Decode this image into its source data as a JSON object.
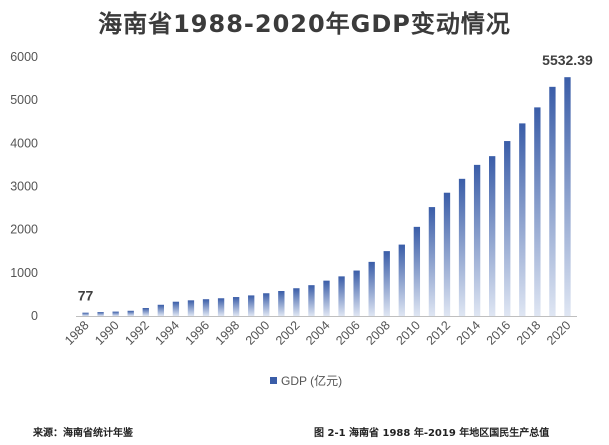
{
  "title": "海南省1988-2020年GDP变动情况",
  "legend_label": "GDP (亿元)",
  "source_text": "来源：海南省统计年鉴",
  "caption_text": "图 2-1    海南省 1988 年-2019 年地区国民生产总值",
  "colors": {
    "bar": "#3a5da8",
    "bar_light": "#dfe6f3",
    "axis": "#bfbfbf"
  },
  "chart_data": {
    "type": "bar",
    "title": "海南省1988-2020年GDP变动情况",
    "xlabel": "",
    "ylabel": "",
    "ylim": [
      0,
      6000
    ],
    "yticks": [
      0,
      1000,
      2000,
      3000,
      4000,
      5000,
      6000
    ],
    "xtick_labels": [
      "1988",
      "1990",
      "1992",
      "1994",
      "1996",
      "1998",
      "2000",
      "2002",
      "2004",
      "2006",
      "2008",
      "2010",
      "2012",
      "2014",
      "2016",
      "2018",
      "2020"
    ],
    "categories": [
      "1988",
      "1989",
      "1990",
      "1991",
      "1992",
      "1993",
      "1994",
      "1995",
      "1996",
      "1997",
      "1998",
      "1999",
      "2000",
      "2001",
      "2002",
      "2003",
      "2004",
      "2005",
      "2006",
      "2007",
      "2008",
      "2009",
      "2010",
      "2011",
      "2012",
      "2013",
      "2014",
      "2015",
      "2016",
      "2017",
      "2018",
      "2019",
      "2020"
    ],
    "series": [
      {
        "name": "GDP (亿元)",
        "values": [
          77,
          91,
          102,
          121,
          185,
          260,
          331,
          363,
          389,
          411,
          439,
          477,
          527,
          579,
          643,
          714,
          819,
          918,
          1053,
          1254,
          1503,
          1654,
          2065,
          2523,
          2856,
          3178,
          3501,
          3703,
          4053,
          4462,
          4833,
          5309,
          5532.39
        ]
      }
    ],
    "data_labels": [
      {
        "category": "1988",
        "text": "77"
      },
      {
        "category": "2020",
        "text": "5532.39"
      }
    ],
    "grid": false,
    "legend_position": "bottom"
  }
}
